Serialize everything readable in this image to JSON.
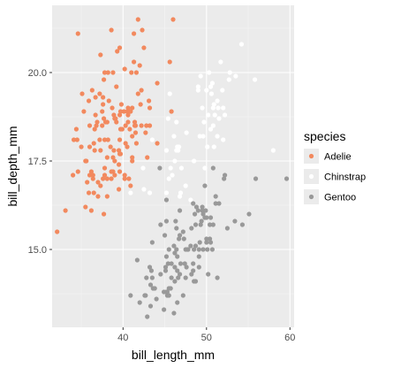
{
  "chart_data": {
    "type": "scatter",
    "xlabel": "bill_length_mm",
    "ylabel": "bill_depth_mm",
    "xlim": [
      31.5,
      60.5
    ],
    "ylim": [
      12.8,
      21.9
    ],
    "x_ticks": [
      40,
      50,
      60
    ],
    "x_tick_labels": [
      "40",
      "50",
      "60"
    ],
    "y_ticks": [
      15.0,
      17.5,
      20.0
    ],
    "y_tick_labels": [
      "15.0",
      "17.5",
      "20.0"
    ],
    "grid": true,
    "legend": {
      "title": "species",
      "position": "right"
    },
    "series": [
      {
        "name": "Adelie",
        "color": "#f2895e",
        "points": [
          [
            32.1,
            15.5
          ],
          [
            33.1,
            16.1
          ],
          [
            34.0,
            17.1
          ],
          [
            34.1,
            18.1
          ],
          [
            34.4,
            18.4
          ],
          [
            34.5,
            18.1
          ],
          [
            34.6,
            21.1
          ],
          [
            34.6,
            17.2
          ],
          [
            35.0,
            17.9
          ],
          [
            35.1,
            19.4
          ],
          [
            35.3,
            18.9
          ],
          [
            35.5,
            17.5
          ],
          [
            35.5,
            16.2
          ],
          [
            35.6,
            17.5
          ],
          [
            35.7,
            16.9
          ],
          [
            35.9,
            19.2
          ],
          [
            35.9,
            16.6
          ],
          [
            36.0,
            18.5
          ],
          [
            36.0,
            17.1
          ],
          [
            36.0,
            17.9
          ],
          [
            36.2,
            17.2
          ],
          [
            36.2,
            16.1
          ],
          [
            36.3,
            19.5
          ],
          [
            36.4,
            17.0
          ],
          [
            36.4,
            17.1
          ],
          [
            36.5,
            18.0
          ],
          [
            36.5,
            16.6
          ],
          [
            36.6,
            17.8
          ],
          [
            36.6,
            18.4
          ],
          [
            36.7,
            19.3
          ],
          [
            36.7,
            18.8
          ],
          [
            36.8,
            18.5
          ],
          [
            36.9,
            18.6
          ],
          [
            37.0,
            16.9
          ],
          [
            37.0,
            16.5
          ],
          [
            37.2,
            18.1
          ],
          [
            37.2,
            19.4
          ],
          [
            37.3,
            20.5
          ],
          [
            37.3,
            17.8
          ],
          [
            37.3,
            16.8
          ],
          [
            37.5,
            18.9
          ],
          [
            37.5,
            18.5
          ],
          [
            37.6,
            19.1
          ],
          [
            37.6,
            17.0
          ],
          [
            37.6,
            19.3
          ],
          [
            37.7,
            18.7
          ],
          [
            37.7,
            16.0
          ],
          [
            37.7,
            19.8
          ],
          [
            37.8,
            18.1
          ],
          [
            37.8,
            17.1
          ],
          [
            37.8,
            17.3
          ],
          [
            37.8,
            20.0
          ],
          [
            37.9,
            18.6
          ],
          [
            38.1,
            18.6
          ],
          [
            38.1,
            17.0
          ],
          [
            38.1,
            16.5
          ],
          [
            38.1,
            17.6
          ],
          [
            38.2,
            18.1
          ],
          [
            38.2,
            20.0
          ],
          [
            38.3,
            19.2
          ],
          [
            38.5,
            17.9
          ],
          [
            38.6,
            21.2
          ],
          [
            38.6,
            17.2
          ],
          [
            38.6,
            17.0
          ],
          [
            38.7,
            19.0
          ],
          [
            38.8,
            17.2
          ],
          [
            38.8,
            17.6
          ],
          [
            38.8,
            20.0
          ],
          [
            38.9,
            17.8
          ],
          [
            38.9,
            18.8
          ],
          [
            39.0,
            17.1
          ],
          [
            39.0,
            18.7
          ],
          [
            39.0,
            17.5
          ],
          [
            39.1,
            18.7
          ],
          [
            39.2,
            19.6
          ],
          [
            39.2,
            18.6
          ],
          [
            39.3,
            20.6
          ],
          [
            39.5,
            17.4
          ],
          [
            39.5,
            16.7
          ],
          [
            39.5,
            17.8
          ],
          [
            39.6,
            17.7
          ],
          [
            39.6,
            18.8
          ],
          [
            39.6,
            20.7
          ],
          [
            39.6,
            18.1
          ],
          [
            39.6,
            17.2
          ],
          [
            39.7,
            18.4
          ],
          [
            39.7,
            17.7
          ],
          [
            39.7,
            18.9
          ],
          [
            39.8,
            19.1
          ],
          [
            39.9,
            18.4
          ],
          [
            40.1,
            18.9
          ],
          [
            40.2,
            17.0
          ],
          [
            40.2,
            20.1
          ],
          [
            40.2,
            17.1
          ],
          [
            40.3,
            18.0
          ],
          [
            40.3,
            18.5
          ],
          [
            40.5,
            17.9
          ],
          [
            40.5,
            18.9
          ],
          [
            40.6,
            18.6
          ],
          [
            40.6,
            18.8
          ],
          [
            40.6,
            19.0
          ],
          [
            40.7,
            17.0
          ],
          [
            40.8,
            18.4
          ],
          [
            40.8,
            18.9
          ],
          [
            40.9,
            18.9
          ],
          [
            40.9,
            16.8
          ],
          [
            41.0,
            20.0
          ],
          [
            41.1,
            17.6
          ],
          [
            41.1,
            19.0
          ],
          [
            41.1,
            18.2
          ],
          [
            41.1,
            17.5
          ],
          [
            41.3,
            20.3
          ],
          [
            41.3,
            21.1
          ],
          [
            41.4,
            18.6
          ],
          [
            41.4,
            18.5
          ],
          [
            41.5,
            18.3
          ],
          [
            41.5,
            18.5
          ],
          [
            41.6,
            18.0
          ],
          [
            41.6,
            20.0
          ],
          [
            41.8,
            19.4
          ],
          [
            41.8,
            21.5
          ],
          [
            42.0,
            20.2
          ],
          [
            42.1,
            19.1
          ],
          [
            42.2,
            18.5
          ],
          [
            42.2,
            19.5
          ],
          [
            42.3,
            21.2
          ],
          [
            42.5,
            20.7
          ],
          [
            42.7,
            18.3
          ],
          [
            42.8,
            18.5
          ],
          [
            42.9,
            17.6
          ],
          [
            43.1,
            19.2
          ],
          [
            43.2,
            18.5
          ],
          [
            43.2,
            19.0
          ],
          [
            44.1,
            19.7
          ],
          [
            44.1,
            18.0
          ],
          [
            45.6,
            20.3
          ],
          [
            45.8,
            18.9
          ],
          [
            46.0,
            21.5
          ]
        ]
      },
      {
        "name": "Chinstrap",
        "color": "#ffffff",
        "points": [
          [
            40.9,
            16.6
          ],
          [
            42.4,
            17.3
          ],
          [
            42.5,
            16.7
          ],
          [
            43.2,
            16.6
          ],
          [
            43.5,
            18.1
          ],
          [
            45.2,
            17.8
          ],
          [
            45.2,
            16.6
          ],
          [
            45.4,
            18.7
          ],
          [
            45.5,
            17.0
          ],
          [
            45.6,
            19.4
          ],
          [
            45.7,
            17.3
          ],
          [
            45.9,
            17.1
          ],
          [
            46.1,
            18.2
          ],
          [
            46.2,
            17.5
          ],
          [
            46.4,
            17.8
          ],
          [
            46.4,
            18.6
          ],
          [
            46.5,
            17.9
          ],
          [
            46.6,
            17.8
          ],
          [
            46.7,
            17.9
          ],
          [
            46.8,
            16.5
          ],
          [
            46.9,
            16.6
          ],
          [
            47.0,
            17.3
          ],
          [
            47.5,
            16.8
          ],
          [
            47.6,
            18.3
          ],
          [
            48.1,
            16.4
          ],
          [
            48.5,
            17.5
          ],
          [
            49.0,
            19.5
          ],
          [
            49.0,
            19.6
          ],
          [
            49.2,
            18.2
          ],
          [
            49.3,
            19.9
          ],
          [
            49.5,
            19.0
          ],
          [
            49.6,
            18.2
          ],
          [
            49.7,
            18.6
          ],
          [
            49.8,
            17.3
          ],
          [
            50.0,
            19.5
          ],
          [
            50.1,
            17.9
          ],
          [
            50.2,
            18.8
          ],
          [
            50.3,
            20.0
          ],
          [
            50.5,
            19.6
          ],
          [
            50.5,
            18.4
          ],
          [
            50.6,
            19.4
          ],
          [
            50.7,
            19.7
          ],
          [
            50.8,
            19.0
          ],
          [
            50.8,
            18.5
          ],
          [
            50.9,
            17.9
          ],
          [
            50.9,
            19.1
          ],
          [
            51.0,
            18.8
          ],
          [
            51.3,
            19.2
          ],
          [
            51.3,
            18.2
          ],
          [
            51.4,
            19.0
          ],
          [
            51.5,
            18.7
          ],
          [
            51.7,
            20.3
          ],
          [
            51.9,
            19.5
          ],
          [
            52.0,
            18.1
          ],
          [
            52.0,
            19.0
          ],
          [
            52.2,
            18.8
          ],
          [
            52.7,
            19.8
          ],
          [
            52.8,
            20.0
          ],
          [
            53.5,
            19.9
          ],
          [
            54.2,
            20.8
          ],
          [
            55.8,
            19.8
          ],
          [
            58.0,
            17.8
          ]
        ]
      },
      {
        "name": "Gentoo",
        "color": "#999999",
        "points": [
          [
            40.9,
            13.7
          ],
          [
            41.7,
            14.7
          ],
          [
            42.0,
            13.5
          ],
          [
            42.6,
            13.7
          ],
          [
            42.7,
            13.7
          ],
          [
            42.8,
            14.2
          ],
          [
            42.9,
            13.1
          ],
          [
            43.2,
            14.5
          ],
          [
            43.3,
            13.4
          ],
          [
            43.3,
            14.0
          ],
          [
            43.4,
            14.4
          ],
          [
            43.5,
            14.2
          ],
          [
            43.5,
            15.2
          ],
          [
            43.6,
            13.9
          ],
          [
            43.8,
            13.9
          ],
          [
            44.0,
            13.6
          ],
          [
            44.4,
            17.3
          ],
          [
            44.5,
            14.3
          ],
          [
            44.5,
            15.7
          ],
          [
            44.9,
            13.3
          ],
          [
            44.9,
            13.8
          ],
          [
            45.0,
            15.4
          ],
          [
            45.1,
            14.5
          ],
          [
            45.1,
            14.4
          ],
          [
            45.2,
            13.8
          ],
          [
            45.2,
            14.8
          ],
          [
            45.2,
            15.8
          ],
          [
            45.2,
            16.4
          ],
          [
            45.3,
            13.8
          ],
          [
            45.3,
            13.7
          ],
          [
            45.4,
            14.6
          ],
          [
            45.5,
            13.7
          ],
          [
            45.5,
            13.9
          ],
          [
            45.5,
            15.0
          ],
          [
            45.7,
            13.9
          ],
          [
            45.8,
            14.2
          ],
          [
            45.8,
            14.6
          ],
          [
            46.1,
            13.2
          ],
          [
            46.1,
            15.1
          ],
          [
            46.2,
            14.5
          ],
          [
            46.2,
            14.1
          ],
          [
            46.2,
            14.9
          ],
          [
            46.3,
            15.8
          ],
          [
            46.4,
            15.0
          ],
          [
            46.4,
            15.6
          ],
          [
            46.5,
            13.5
          ],
          [
            46.5,
            14.4
          ],
          [
            46.5,
            14.8
          ],
          [
            46.6,
            14.2
          ],
          [
            46.7,
            15.3
          ],
          [
            46.8,
            15.4
          ],
          [
            46.8,
            14.3
          ],
          [
            46.8,
            16.1
          ],
          [
            46.9,
            14.6
          ],
          [
            47.2,
            13.7
          ],
          [
            47.2,
            15.5
          ],
          [
            47.3,
            15.3
          ],
          [
            47.4,
            14.6
          ],
          [
            47.5,
            14.2
          ],
          [
            47.5,
            15.0
          ],
          [
            47.6,
            14.5
          ],
          [
            47.7,
            15.0
          ],
          [
            47.8,
            15.0
          ],
          [
            48.1,
            15.1
          ],
          [
            48.2,
            14.3
          ],
          [
            48.2,
            15.6
          ],
          [
            48.4,
            14.6
          ],
          [
            48.4,
            14.4
          ],
          [
            48.4,
            16.3
          ],
          [
            48.5,
            14.1
          ],
          [
            48.5,
            15.0
          ],
          [
            48.6,
            16.0
          ],
          [
            48.7,
            14.1
          ],
          [
            48.7,
            15.1
          ],
          [
            48.7,
            15.7
          ],
          [
            48.8,
            16.2
          ],
          [
            49.0,
            16.1
          ],
          [
            49.1,
            14.5
          ],
          [
            49.1,
            15.0
          ],
          [
            49.1,
            14.8
          ],
          [
            49.2,
            15.2
          ],
          [
            49.3,
            15.7
          ],
          [
            49.4,
            15.8
          ],
          [
            49.5,
            16.1
          ],
          [
            49.5,
            16.2
          ],
          [
            49.6,
            15.0
          ],
          [
            49.6,
            16.0
          ],
          [
            49.8,
            15.9
          ],
          [
            49.8,
            16.8
          ],
          [
            49.9,
            16.1
          ],
          [
            50.0,
            15.2
          ],
          [
            50.0,
            15.3
          ],
          [
            50.0,
            15.9
          ],
          [
            50.1,
            15.0
          ],
          [
            50.2,
            14.3
          ],
          [
            50.4,
            15.3
          ],
          [
            50.4,
            15.7
          ],
          [
            50.5,
            15.2
          ],
          [
            50.5,
            15.9
          ],
          [
            50.7,
            15.0
          ],
          [
            50.8,
            15.7
          ],
          [
            50.8,
            17.3
          ],
          [
            51.1,
            16.3
          ],
          [
            51.1,
            16.5
          ],
          [
            51.3,
            14.2
          ],
          [
            51.5,
            16.3
          ],
          [
            52.1,
            17.0
          ],
          [
            52.2,
            17.1
          ],
          [
            52.5,
            15.6
          ],
          [
            53.4,
            15.8
          ],
          [
            54.3,
            15.7
          ],
          [
            55.1,
            16.0
          ],
          [
            55.9,
            17.0
          ],
          [
            59.6,
            17.0
          ]
        ]
      }
    ]
  }
}
